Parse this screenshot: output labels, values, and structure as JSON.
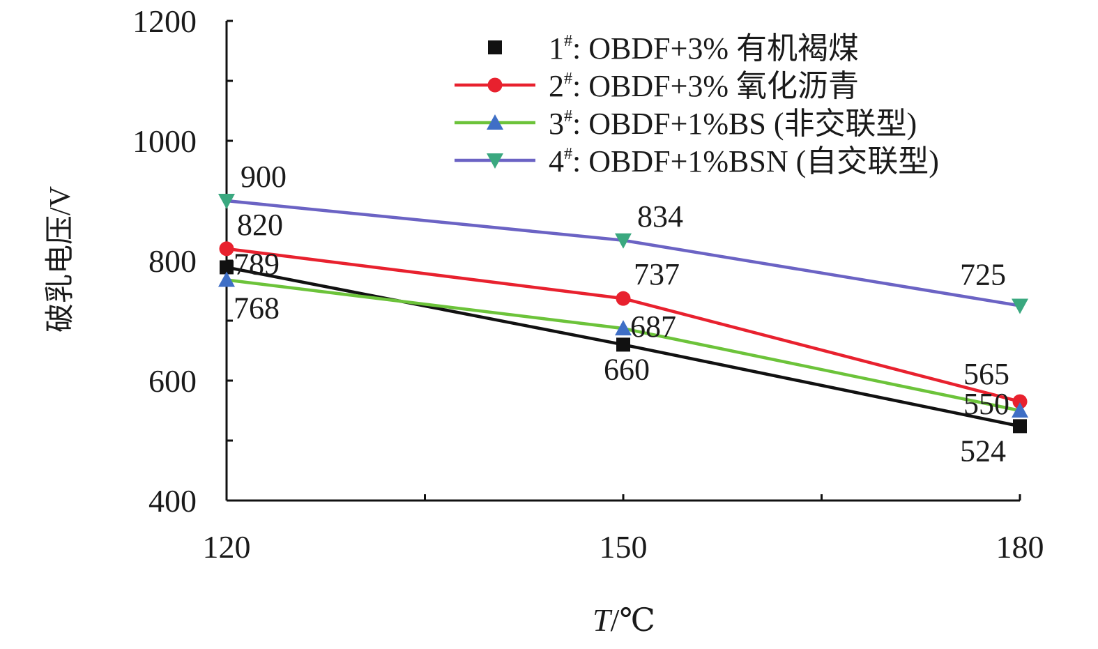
{
  "chart_data": {
    "type": "line",
    "xlabel_italic": "T",
    "xlabel_rest": "/℃",
    "ylabel": "破乳电压/V",
    "x": [
      120,
      150,
      180
    ],
    "x_tick_labels": [
      "120",
      "150",
      "180"
    ],
    "xlim": [
      120,
      180
    ],
    "ylim": [
      400,
      1200
    ],
    "y_ticks": [
      400,
      600,
      800,
      1000,
      1200
    ],
    "y_tick_labels": [
      "400",
      "600",
      "800",
      "1000",
      "1200"
    ],
    "legend_position": "top-right",
    "series": [
      {
        "prefix": "1",
        "sup": "#",
        "rest": ": OBDF+3% 有机褐煤",
        "values": [
          789,
          660,
          524
        ],
        "labels": [
          "789",
          "660",
          "524"
        ],
        "marker": "square",
        "line_color": "#111111",
        "marker_color": "#111111",
        "legend_line": false
      },
      {
        "prefix": "2",
        "sup": "#",
        "rest": ": OBDF+3% 氧化沥青",
        "values": [
          820,
          737,
          565
        ],
        "labels": [
          "820",
          "737",
          "565"
        ],
        "marker": "circle",
        "line_color": "#e8212e",
        "marker_color": "#e8212e",
        "legend_line": true
      },
      {
        "prefix": "3",
        "sup": "#",
        "rest": ": OBDF+1%BS (非交联型)",
        "values": [
          768,
          687,
          550
        ],
        "labels": [
          "768",
          "687",
          "550"
        ],
        "marker": "triangle-up",
        "line_color": "#6cc33a",
        "marker_color": "#3f6fc6",
        "legend_line": true
      },
      {
        "prefix": "4",
        "sup": "#",
        "rest": ": OBDF+1%BSN (自交联型)",
        "values": [
          900,
          834,
          725
        ],
        "labels": [
          "900",
          "834",
          "725"
        ],
        "marker": "triangle-down",
        "line_color": "#6b63c4",
        "marker_color": "#3aa87f",
        "legend_line": true
      }
    ]
  }
}
